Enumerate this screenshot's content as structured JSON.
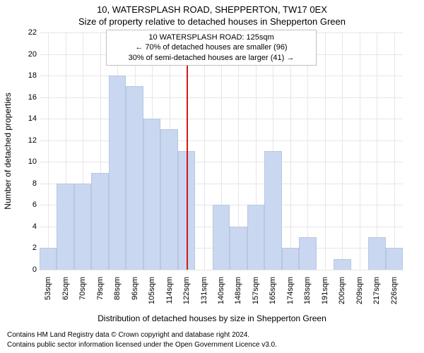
{
  "title": "10, WATERSPLASH ROAD, SHEPPERTON, TW17 0EX",
  "subtitle": "Size of property relative to detached houses in Shepperton Green",
  "info_box": {
    "line1": "10 WATERSPLASH ROAD: 125sqm",
    "line2": "← 70% of detached houses are smaller (96)",
    "line3": "30% of semi-detached houses are larger (41) →"
  },
  "chart": {
    "type": "histogram",
    "ylabel": "Number of detached properties",
    "xlabel": "Distribution of detached houses by size in Shepperton Green",
    "ylim": [
      0,
      22
    ],
    "ytick_step": 2,
    "categories": [
      "53sqm",
      "62sqm",
      "70sqm",
      "79sqm",
      "88sqm",
      "96sqm",
      "105sqm",
      "114sqm",
      "122sqm",
      "131sqm",
      "140sqm",
      "148sqm",
      "157sqm",
      "165sqm",
      "174sqm",
      "183sqm",
      "191sqm",
      "200sqm",
      "209sqm",
      "217sqm",
      "226sqm"
    ],
    "values": [
      2,
      8,
      8,
      9,
      18,
      17,
      14,
      13,
      11,
      0,
      6,
      4,
      6,
      11,
      2,
      3,
      0,
      1,
      0,
      3,
      2
    ],
    "bar_color": "#c9d7f0",
    "bar_border_color": "#b8c7e2",
    "background_color": "#ffffff",
    "grid_color": "#e6e6e6",
    "vline_index_after": 8,
    "vline_color": "#d11919",
    "label_fontsize": 12,
    "tick_fontsize": 11,
    "title_fontsize": 13
  },
  "footer": {
    "line1": "Contains HM Land Registry data © Crown copyright and database right 2024.",
    "line2": "Contains public sector information licensed under the Open Government Licence v3.0."
  }
}
